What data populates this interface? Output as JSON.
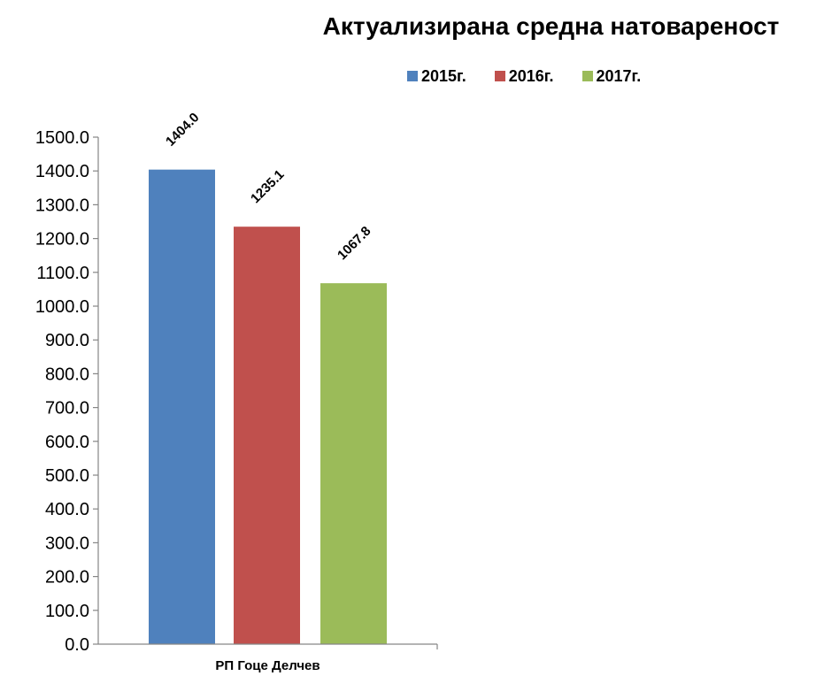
{
  "chart_data": {
    "type": "bar",
    "title": "Актуализирана средна натовареност",
    "categories": [
      "РП Гоце Делчев"
    ],
    "series": [
      {
        "name": "2015г.",
        "color": "#4F81BD",
        "values": [
          1404.0
        ],
        "label": "1404.0"
      },
      {
        "name": "2016г.",
        "color": "#C0504D",
        "values": [
          1235.1
        ],
        "label": "1235.1"
      },
      {
        "name": "2017г.",
        "color": "#9BBB59",
        "values": [
          1067.8
        ],
        "label": "1067.8"
      }
    ],
    "ylim": [
      0,
      1500
    ],
    "ytick_step": 100,
    "ytick_labels": [
      "0.0",
      "100.0",
      "200.0",
      "300.0",
      "400.0",
      "500.0",
      "600.0",
      "700.0",
      "800.0",
      "900.0",
      "1000.0",
      "1100.0",
      "1200.0",
      "1300.0",
      "1400.0",
      "1500.0"
    ],
    "xlabel": "",
    "ylabel": "",
    "grid": false,
    "legend_position": "top-right"
  }
}
